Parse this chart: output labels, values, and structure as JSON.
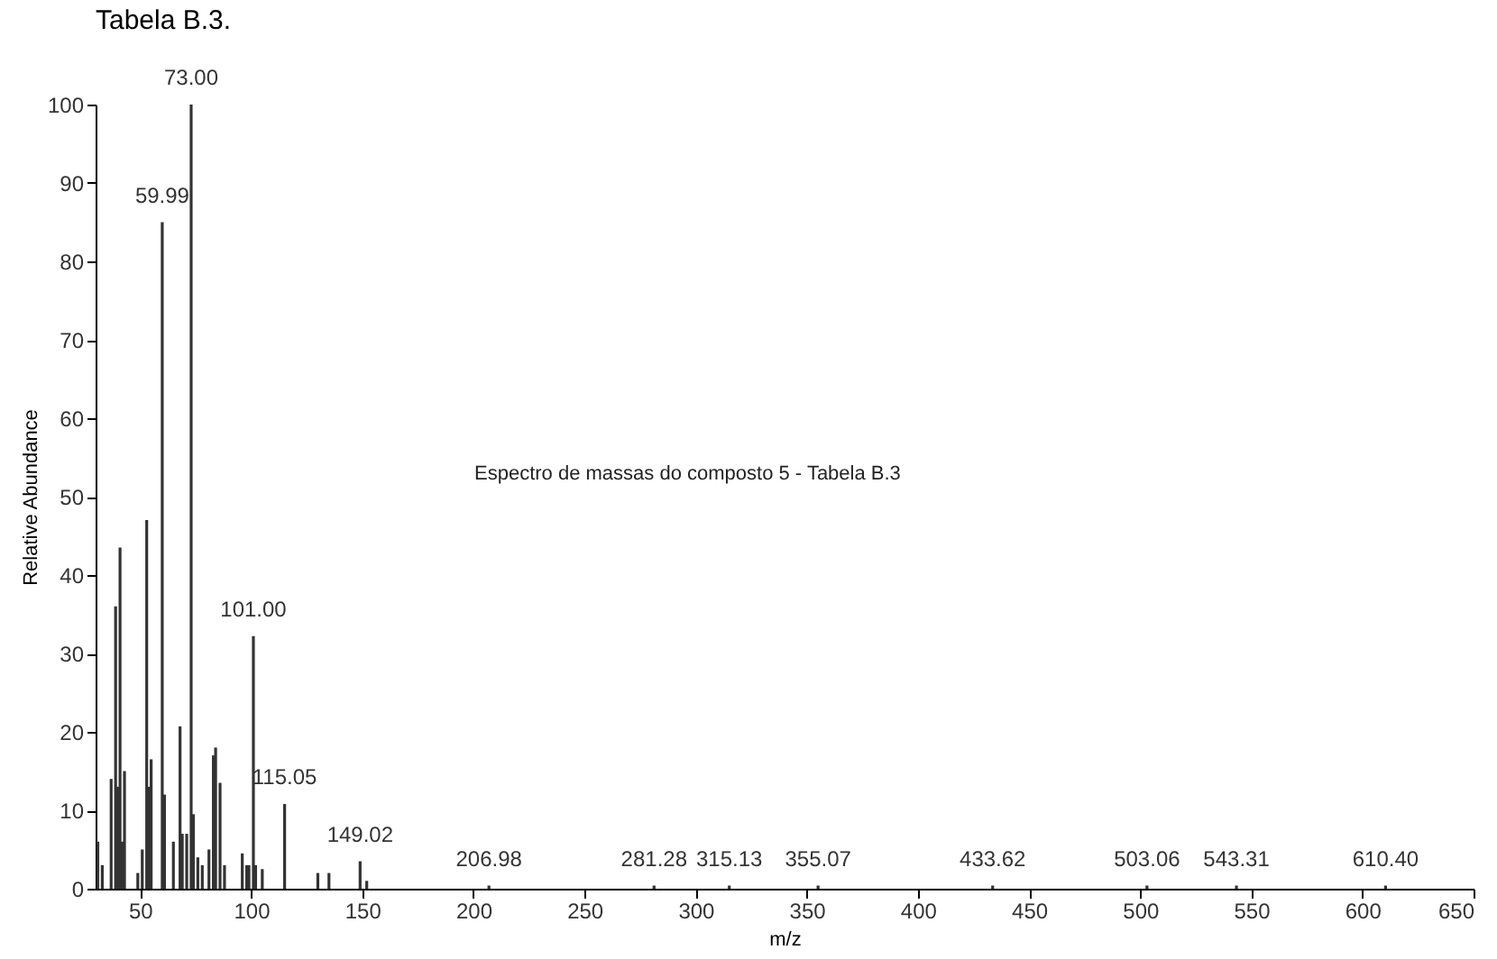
{
  "chart_data": {
    "type": "bar",
    "title": "Tabela B.3.",
    "xlabel": "m/z",
    "ylabel": "Relative Abundance",
    "x": [
      31,
      33,
      37,
      39,
      40,
      41,
      42,
      43,
      49,
      51,
      53,
      54,
      55,
      59.99,
      61,
      65,
      68,
      69,
      71,
      73,
      74,
      76,
      78,
      81,
      83,
      84,
      86,
      88,
      96,
      98,
      99,
      101,
      102,
      105,
      115.05,
      130,
      135,
      149.02,
      152,
      206.98,
      281.28,
      315.13,
      355.07,
      433.62,
      503.06,
      543.31,
      610.4
    ],
    "values": [
      6,
      3,
      14,
      36,
      13,
      43.5,
      6,
      15,
      2,
      5,
      47,
      13,
      16.5,
      85,
      12,
      6,
      20.7,
      7,
      7,
      100,
      9.5,
      4,
      3,
      5,
      17,
      18,
      13.5,
      3,
      4.5,
      3,
      3,
      32.2,
      3,
      2.5,
      10.8,
      2,
      2,
      3.5,
      1,
      0.4,
      0.4,
      0.4,
      0.4,
      0.4,
      0.4,
      0.4,
      0.4
    ],
    "color": "#333333",
    "xlim": [
      30,
      650
    ],
    "xticks": [
      50,
      100,
      150,
      200,
      250,
      300,
      350,
      400,
      450,
      500,
      550,
      600,
      650
    ],
    "ylim": [
      0,
      100
    ],
    "yticks": [
      0,
      10,
      20,
      30,
      40,
      50,
      60,
      70,
      80,
      90,
      100
    ],
    "grid": false,
    "annotations": [
      "Espectro de massas do composto 5 - Tabela B.3",
      {
        "text": "73.00",
        "x": 73,
        "y": 100
      },
      {
        "text": "59.99",
        "x": 59.99,
        "y": 85
      },
      {
        "text": "101.00",
        "x": 101,
        "y": 32.2
      },
      {
        "text": "115.05",
        "x": 115.05,
        "y": 10.8
      },
      {
        "text": "149.02",
        "x": 149.02,
        "y": 3.5
      },
      {
        "text": "206.98",
        "x": 206.98,
        "y": 0.4
      },
      {
        "text": "281.28",
        "x": 281.28,
        "y": 0.4
      },
      {
        "text": "315.13",
        "x": 315.13,
        "y": 0.4
      },
      {
        "text": "355.07",
        "x": 355.07,
        "y": 0.4
      },
      {
        "text": "433.62",
        "x": 433.62,
        "y": 0.4
      },
      {
        "text": "503.06",
        "x": 503.06,
        "y": 0.4
      },
      {
        "text": "543.31",
        "x": 543.31,
        "y": 0.4
      },
      {
        "text": "610.40",
        "x": 610.4,
        "y": 0.4
      }
    ]
  }
}
